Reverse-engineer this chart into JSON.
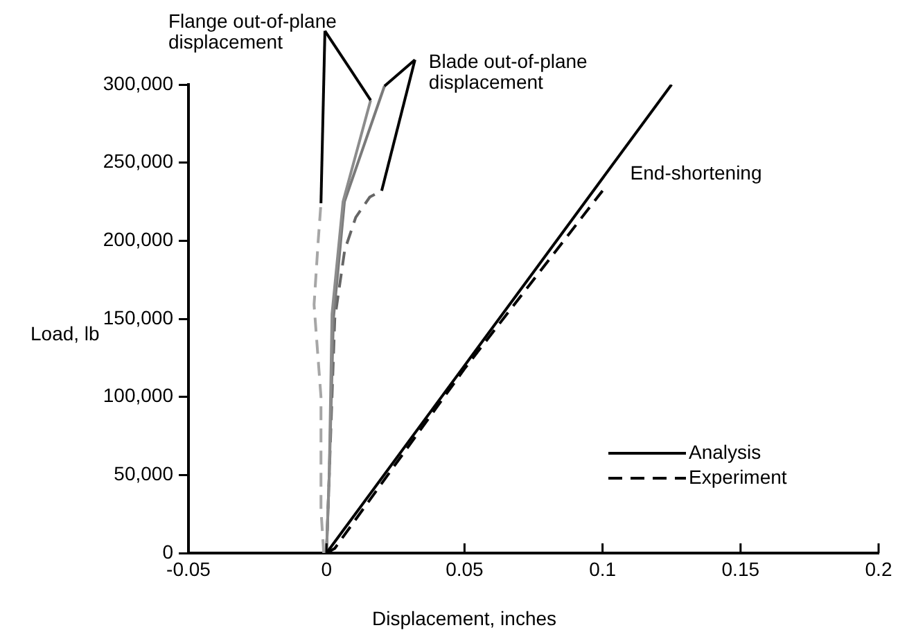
{
  "chart_data": {
    "type": "line",
    "xlabel": "Displacement, inches",
    "ylabel": "Load, lb",
    "xlim": [
      -0.05,
      0.2
    ],
    "xticks": [
      -0.05,
      0,
      0.05,
      0.1,
      0.15,
      0.2
    ],
    "ylim": [
      0,
      300000
    ],
    "yticks": [
      {
        "value": 0,
        "label": "0"
      },
      {
        "value": 50000,
        "label": "50,000"
      },
      {
        "value": 100000,
        "label": "100,000"
      },
      {
        "value": 150000,
        "label": "150,000"
      },
      {
        "value": 200000,
        "label": "200,000"
      },
      {
        "value": 250000,
        "label": "250,000"
      },
      {
        "value": 300000,
        "label": "300,000"
      }
    ],
    "grid": false,
    "legend": "bottom right",
    "marker": "none",
    "series": [
      {
        "name": "Analysis",
        "color": "#000000",
        "line_style": "solid",
        "x": [
          0,
          0.05,
          0.1,
          0.125
        ],
        "values": [
          0,
          120000,
          240000,
          300000
        ]
      },
      {
        "name": "Experiment",
        "color": "#000000",
        "line_style": "dashed",
        "x": [
          0,
          0.003,
          0.05,
          0.1
        ],
        "values": [
          0,
          3000,
          118000,
          232000
        ]
      },
      {
        "color": "#8c8c8c",
        "line_style": "solid",
        "x": [
          0,
          0.001,
          0.002,
          0.006,
          0.016
        ],
        "values": [
          0,
          50000,
          153000,
          225000,
          290000
        ]
      },
      {
        "color": "#a6a6a6",
        "line_style": "dashed",
        "x": [
          -0.001,
          -0.002,
          -0.002,
          -0.0045,
          -0.003,
          -0.002
        ],
        "values": [
          0,
          28000,
          100000,
          159000,
          200000,
          224000
        ]
      },
      {
        "color": "#7a7a7a",
        "line_style": "solid",
        "x": [
          0,
          0.001,
          0.0025,
          0.0065,
          0.021
        ],
        "values": [
          0,
          50000,
          150000,
          225000,
          299000
        ]
      },
      {
        "color": "#666666",
        "line_style": "dashed",
        "x": [
          0,
          0.001,
          0.003,
          0.0066,
          0.0106,
          0.0157,
          0.02
        ],
        "values": [
          0,
          50000,
          150000,
          194000,
          215000,
          228000,
          232000
        ]
      }
    ],
    "annotations": [
      {
        "text": "Flange out-of-plane displacement",
        "x": 0.016,
        "y": 290000
      },
      {
        "text": "Blade out-of-plane displacement",
        "x": 0.021,
        "y": 299000
      },
      {
        "text": "End-shortening",
        "x": 0.1,
        "y": 232000
      }
    ]
  }
}
